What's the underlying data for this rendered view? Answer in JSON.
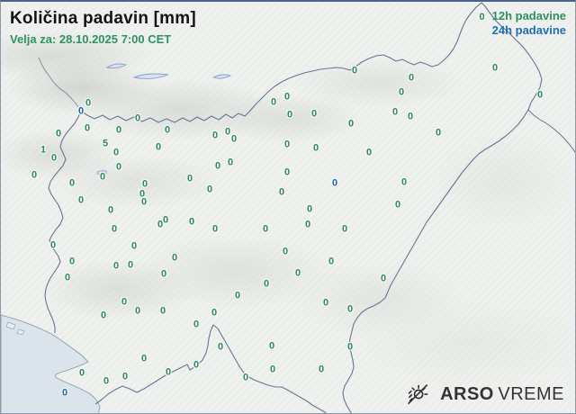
{
  "header": {
    "title": "Količina padavin [mm]",
    "subtitle": "Velja za: 28.10.2025 7:00 CET"
  },
  "legend": {
    "sample": "0",
    "items": [
      {
        "id": "12h",
        "label": "12h padavine",
        "color": "#2e8f63"
      },
      {
        "id": "24h",
        "label": "24h padavine",
        "color": "#1f6fb5"
      }
    ]
  },
  "logo": {
    "bold": "ARSO",
    "light": "VREME",
    "icon": "sun-rain-icon"
  },
  "colors": {
    "station_green": "#2f8a5e",
    "station_blue": "#1e63ab",
    "land": "#eff1ee",
    "sea": "#dce4eb",
    "border_line": "#667596"
  },
  "units": "mm",
  "stations": [
    [
      97,
      113,
      "0",
      "12h"
    ],
    [
      152,
      130,
      "0",
      "12h"
    ],
    [
      64,
      147,
      "0",
      "12h"
    ],
    [
      96,
      141,
      "0",
      "12h"
    ],
    [
      131,
      143,
      "0",
      "12h"
    ],
    [
      47,
      165,
      "1",
      "12h"
    ],
    [
      116,
      158,
      "5",
      "12h"
    ],
    [
      128,
      168,
      "0",
      "12h"
    ],
    [
      59,
      174,
      "0",
      "12h"
    ],
    [
      185,
      143,
      "0",
      "12h"
    ],
    [
      175,
      162,
      "0",
      "12h"
    ],
    [
      238,
      149,
      "0",
      "12h"
    ],
    [
      252,
      145,
      "0",
      "12h"
    ],
    [
      259,
      153,
      "0",
      "12h"
    ],
    [
      303,
      112,
      "0",
      "12h"
    ],
    [
      318,
      106,
      "0",
      "12h"
    ],
    [
      321,
      126,
      "0",
      "12h"
    ],
    [
      348,
      125,
      "0",
      "12h"
    ],
    [
      389,
      136,
      "0",
      "12h"
    ],
    [
      393,
      77,
      "0",
      "12h"
    ],
    [
      37,
      193,
      "0",
      "12h"
    ],
    [
      79,
      202,
      "0",
      "12h"
    ],
    [
      131,
      184,
      "0",
      "12h"
    ],
    [
      113,
      195,
      "0",
      "12h"
    ],
    [
      160,
      203,
      "0",
      "12h"
    ],
    [
      157,
      214,
      "0",
      "12h"
    ],
    [
      159,
      223,
      "0",
      "12h"
    ],
    [
      89,
      221,
      "0",
      "12h"
    ],
    [
      122,
      232,
      "0",
      "12h"
    ],
    [
      210,
      197,
      "0",
      "12h"
    ],
    [
      232,
      209,
      "0",
      "12h"
    ],
    [
      241,
      183,
      "0",
      "12h"
    ],
    [
      255,
      179,
      "0",
      "12h"
    ],
    [
      183,
      243,
      "0",
      "12h"
    ],
    [
      177,
      248,
      "0",
      "12h"
    ],
    [
      212,
      245,
      "0",
      "12h"
    ],
    [
      238,
      253,
      "0",
      "12h"
    ],
    [
      126,
      253,
      "0",
      "12h"
    ],
    [
      294,
      253,
      "0",
      "12h"
    ],
    [
      312,
      212,
      "0",
      "12h"
    ],
    [
      318,
      190,
      "0",
      "12h"
    ],
    [
      318,
      159,
      "0",
      "12h"
    ],
    [
      456,
      85,
      "0",
      "12h"
    ],
    [
      445,
      101,
      "0",
      "12h"
    ],
    [
      549,
      74,
      "0",
      "12h"
    ],
    [
      599,
      104,
      "0",
      "12h"
    ],
    [
      438,
      123,
      "0",
      "12h"
    ],
    [
      455,
      128,
      "0",
      "12h"
    ],
    [
      486,
      146,
      "0",
      "12h"
    ],
    [
      350,
      163,
      "0",
      "12h"
    ],
    [
      409,
      168,
      "0",
      "12h"
    ],
    [
      448,
      201,
      "0",
      "12h"
    ],
    [
      441,
      226,
      "0",
      "12h"
    ],
    [
      343,
      231,
      "0",
      "12h"
    ],
    [
      341,
      248,
      "0",
      "12h"
    ],
    [
      382,
      253,
      "0",
      "12h"
    ],
    [
      58,
      271,
      "0",
      "12h"
    ],
    [
      79,
      289,
      "0",
      "12h"
    ],
    [
      74,
      307,
      "0",
      "12h"
    ],
    [
      148,
      272,
      "0",
      "12h"
    ],
    [
      128,
      294,
      "0",
      "12h"
    ],
    [
      144,
      293,
      "0",
      "12h"
    ],
    [
      193,
      285,
      "0",
      "12h"
    ],
    [
      181,
      303,
      "0",
      "12h"
    ],
    [
      316,
      278,
      "0",
      "12h"
    ],
    [
      295,
      314,
      "0",
      "12h"
    ],
    [
      263,
      327,
      "0",
      "12h"
    ],
    [
      137,
      334,
      "0",
      "12h"
    ],
    [
      152,
      344,
      "0",
      "12h"
    ],
    [
      180,
      344,
      "0",
      "12h"
    ],
    [
      114,
      349,
      "0",
      "12h"
    ],
    [
      237,
      346,
      "0",
      "12h"
    ],
    [
      217,
      359,
      "0",
      "12h"
    ],
    [
      244,
      384,
      "0",
      "12h"
    ],
    [
      301,
      383,
      "0",
      "12h"
    ],
    [
      159,
      397,
      "0",
      "12h"
    ],
    [
      217,
      404,
      "0",
      "12h"
    ],
    [
      186,
      412,
      "0",
      "12h"
    ],
    [
      90,
      413,
      "0",
      "12h"
    ],
    [
      117,
      422,
      "0",
      "12h"
    ],
    [
      138,
      417,
      "0",
      "12h"
    ],
    [
      272,
      418,
      "0",
      "12h"
    ],
    [
      302,
      409,
      "0",
      "12h"
    ],
    [
      367,
      289,
      "0",
      "12h"
    ],
    [
      330,
      302,
      "0",
      "12h"
    ],
    [
      425,
      308,
      "0",
      "12h"
    ],
    [
      361,
      335,
      "0",
      "12h"
    ],
    [
      388,
      342,
      "0",
      "12h"
    ],
    [
      388,
      384,
      "0",
      "12h"
    ],
    [
      356,
      409,
      "0",
      "12h"
    ],
    [
      89,
      122,
      "0",
      "24h"
    ],
    [
      371,
      202,
      "0",
      "24h"
    ],
    [
      71,
      435,
      "0",
      "24h"
    ]
  ]
}
